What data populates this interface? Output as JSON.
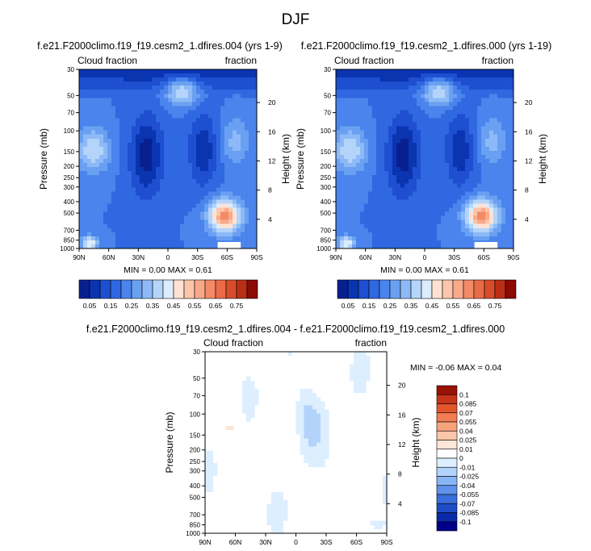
{
  "figure_title": "DJF",
  "colors": {
    "seq": [
      "#08208f",
      "#0a34b0",
      "#1d4fd0",
      "#2f68e0",
      "#4a84ec",
      "#6aa0f2",
      "#8dbaf6",
      "#b5d4fa",
      "#dcecfc",
      "#ffe2d2",
      "#fcc6ab",
      "#f9a98a",
      "#f48a67",
      "#e96b47",
      "#d74d2c",
      "#bb2e16",
      "#8b0a04"
    ],
    "diff": [
      "#00008b",
      "#0a2aaa",
      "#1e4cc8",
      "#3a6fdc",
      "#5e92ea",
      "#87b5f4",
      "#b3d3fa",
      "#ddeeff",
      "#ffffff",
      "#ffe6d6",
      "#fcc6a8",
      "#f8a27c",
      "#f27d52",
      "#e4562c",
      "#c8321a",
      "#991105"
    ]
  },
  "chart_data": [
    {
      "type": "heatmap",
      "title": "f.e21.F2000climo.f19_f19.cesm2_1.dfires.004 (yrs 1-9)",
      "left_string": "Cloud fraction",
      "right_string": "fraction",
      "xlabel": "",
      "ylabel": "Pressure (mb)",
      "ylabel_right": "Height (km)",
      "x_ticks": [
        "90N",
        "60N",
        "30N",
        "0",
        "30S",
        "60S",
        "90S"
      ],
      "y_ticks": [
        "30",
        "50",
        "70",
        "100",
        "150",
        "200",
        "250",
        "300",
        "400",
        "500",
        "700",
        "850",
        "1000"
      ],
      "y_ticks_right": [
        "20",
        "16",
        "12",
        "8",
        "4"
      ],
      "x_range": [
        90,
        -90
      ],
      "y_range_mb": [
        30,
        1000
      ],
      "min_label": "MIN =",
      "min_value": "0.00",
      "max_label": "MAX =",
      "max_value": "0.61",
      "colorbar_labels": [
        "0.05",
        "0.15",
        "0.25",
        "0.35",
        "0.45",
        "0.55",
        "0.65",
        "0.75"
      ]
    },
    {
      "type": "heatmap",
      "title": "f.e21.F2000climo.f19_f19.cesm2_1.dfires.000 (yrs 1-19)",
      "left_string": "Cloud fraction",
      "right_string": "fraction",
      "xlabel": "",
      "ylabel": "Pressure (mb)",
      "ylabel_right": "Height (km)",
      "x_ticks": [
        "90N",
        "60N",
        "30N",
        "0",
        "30S",
        "60S",
        "90S"
      ],
      "y_ticks": [
        "30",
        "50",
        "70",
        "100",
        "150",
        "200",
        "250",
        "300",
        "400",
        "500",
        "700",
        "850",
        "1000"
      ],
      "y_ticks_right": [
        "20",
        "16",
        "12",
        "8",
        "4"
      ],
      "x_range": [
        90,
        -90
      ],
      "y_range_mb": [
        30,
        1000
      ],
      "min_label": "MIN =",
      "min_value": "0.00",
      "max_label": "MAX =",
      "max_value": "0.61",
      "colorbar_labels": [
        "0.05",
        "0.15",
        "0.25",
        "0.35",
        "0.45",
        "0.55",
        "0.65",
        "0.75"
      ]
    },
    {
      "type": "heatmap",
      "title": "f.e21.F2000climo.f19_f19.cesm2_1.dfires.004 - f.e21.F2000climo.f19_f19.cesm2_1.dfires.000",
      "left_string": "Cloud fraction",
      "right_string": "fraction",
      "xlabel": "",
      "ylabel": "Pressure (mb)",
      "ylabel_right": "Height (km)",
      "x_ticks": [
        "90N",
        "60N",
        "30N",
        "0",
        "30S",
        "60S",
        "90S"
      ],
      "y_ticks": [
        "30",
        "50",
        "70",
        "100",
        "150",
        "200",
        "250",
        "300",
        "400",
        "500",
        "700",
        "850",
        "1000"
      ],
      "y_ticks_right": [
        "20",
        "16",
        "12",
        "8",
        "4"
      ],
      "x_range": [
        90,
        -90
      ],
      "y_range_mb": [
        30,
        1000
      ],
      "min_label": "MIN =",
      "min_value": "-0.06",
      "max_label": "MAX =",
      "max_value": "0.04",
      "colorbar_labels": [
        "0.1",
        "0.085",
        "0.07",
        "0.055",
        "0.04",
        "0.025",
        "0.01",
        "0",
        "-0.01",
        "-0.025",
        "-0.04",
        "-0.055",
        "-0.07",
        "-0.085",
        "-0.1"
      ]
    }
  ]
}
